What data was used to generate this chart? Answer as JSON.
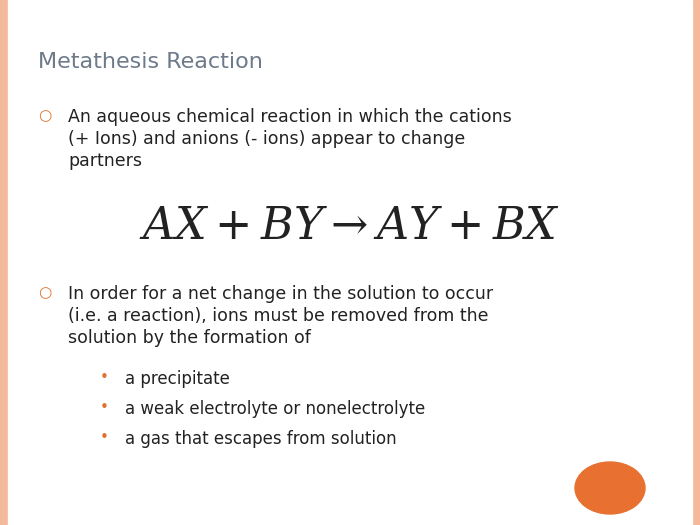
{
  "title": "Metathesis Reaction",
  "title_color": "#6d7a8a",
  "background_color": "#ffffff",
  "left_border_color": "#f4b89a",
  "right_border_color": "#f4b89a",
  "text_color": "#222222",
  "bullet_color": "#e07030",
  "sub_bullet_color": "#e07030",
  "bullet1_line1": "An aqueous chemical reaction in which the cations",
  "bullet1_line2": "(+ Ions) and anions (- ions) appear to change",
  "bullet1_line3": "partners",
  "bullet2_line1": "In order for a net change in the solution to occur",
  "bullet2_line2": "(i.e. a reaction), ions must be removed from the",
  "bullet2_line3": "solution by the formation of",
  "sub_bullets": [
    "a precipitate",
    "a weak electrolyte or nonelectrolyte",
    "a gas that escapes from solution"
  ],
  "orange_circle_color": "#e87030",
  "fig_width": 7.0,
  "fig_height": 5.25,
  "dpi": 100
}
